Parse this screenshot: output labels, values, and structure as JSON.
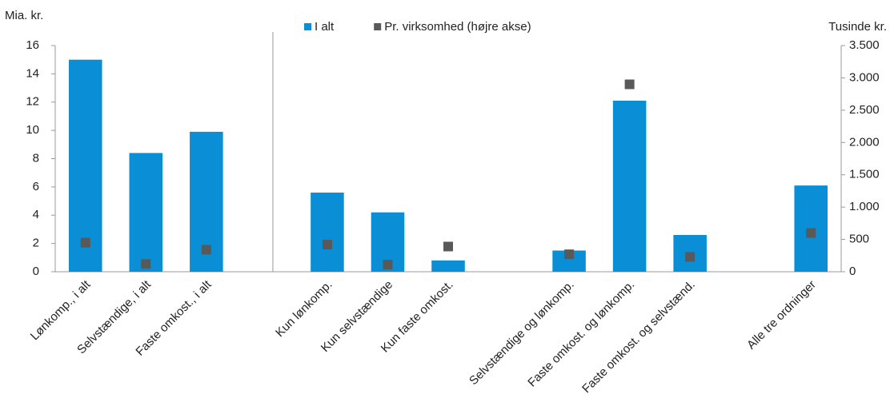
{
  "chart_data": {
    "type": "bar",
    "y_label": "Mia. kr.",
    "y2_label": "Tusinde kr.",
    "categories": [
      "Lønkomp., i alt",
      "Selvstændige, i alt",
      "Faste omkost., i alt",
      null,
      "Kun lønkomp.",
      "Kun selvstændige",
      "Kun faste omkost.",
      null,
      "Selvstændige og lønkomp.",
      "Faste omkost. og lønkomp.",
      "Faste omkost. og selvstænd.",
      null,
      "Alle tre ordninger"
    ],
    "series": [
      {
        "name": "I alt",
        "color": "#0a8fd6",
        "values": [
          15.0,
          8.4,
          9.9,
          null,
          5.6,
          4.2,
          0.8,
          null,
          1.5,
          12.1,
          2.6,
          null,
          6.1
        ]
      },
      {
        "name": "Pr. virksomhed (højre akse)",
        "color": "#595959",
        "axis": "y2",
        "marker": "square",
        "values": [
          450,
          120,
          340,
          null,
          420,
          110,
          390,
          null,
          270,
          2900,
          230,
          null,
          600
        ]
      }
    ],
    "ylim": [
      0,
      16
    ],
    "yticks": [
      0,
      2,
      4,
      6,
      8,
      10,
      12,
      14,
      16
    ],
    "y2lim": [
      0,
      3500
    ],
    "y2ticks": [
      0,
      500,
      {
        "value": 1000,
        "label": "1.000"
      },
      {
        "value": 1500,
        "label": "1.500"
      },
      {
        "value": 2000,
        "label": "2.000"
      },
      {
        "value": 2500,
        "label": "2.500"
      },
      {
        "value": 3000,
        "label": "3.000"
      },
      {
        "value": 3500,
        "label": "3.500"
      }
    ],
    "legend": "top"
  }
}
